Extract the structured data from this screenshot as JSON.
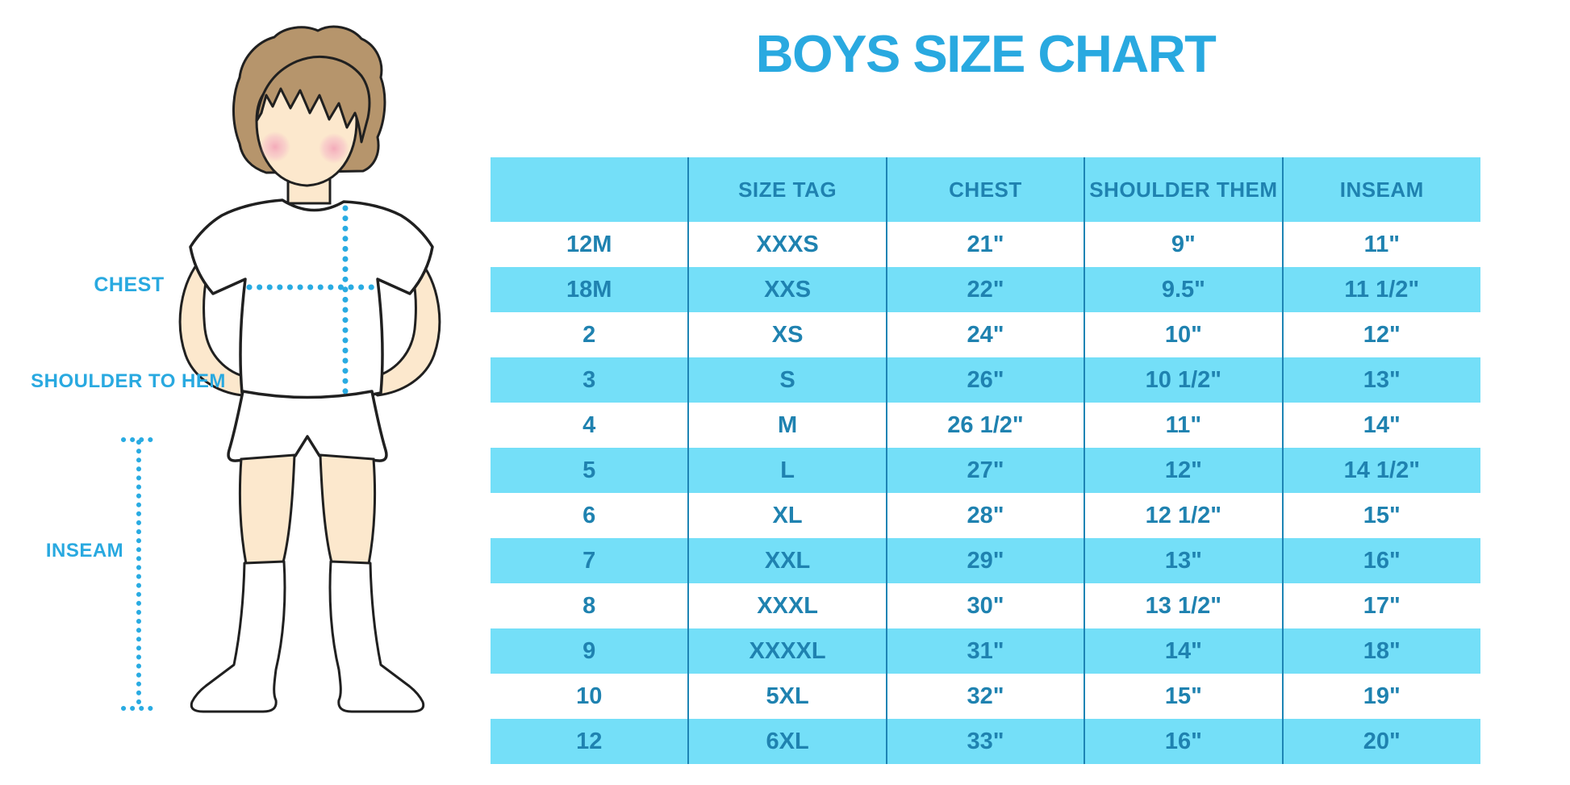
{
  "title": "BOYS SIZE CHART",
  "figure": {
    "chest_label": "CHEST",
    "shoulder_to_hem_label": "SHOULDER TO HEM",
    "inseam_label": "INSEAM"
  },
  "colors": {
    "accent_blue": "#29a9e0",
    "row_blue": "#74dff8",
    "table_text": "#1f82b0",
    "divider": "#1d84b4",
    "hair": "#b6956c",
    "skin": "#fce8cd"
  },
  "chart_data": {
    "type": "table",
    "title": "BOYS SIZE CHART",
    "columns": [
      "",
      "SIZE TAG",
      "CHEST",
      "SHOULDER THEM",
      "INSEAM"
    ],
    "rows": [
      [
        "12M",
        "XXXS",
        "21\"",
        "9\"",
        "11\""
      ],
      [
        "18M",
        "XXS",
        "22\"",
        "9.5\"",
        "11 1/2\""
      ],
      [
        "2",
        "XS",
        "24\"",
        "10\"",
        "12\""
      ],
      [
        "3",
        "S",
        "26\"",
        "10 1/2\"",
        "13\""
      ],
      [
        "4",
        "M",
        "26 1/2\"",
        "11\"",
        "14\""
      ],
      [
        "5",
        "L",
        "27\"",
        "12\"",
        "14 1/2\""
      ],
      [
        "6",
        "XL",
        "28\"",
        "12 1/2\"",
        "15\""
      ],
      [
        "7",
        "XXL",
        "29\"",
        "13\"",
        "16\""
      ],
      [
        "8",
        "XXXL",
        "30\"",
        "13 1/2\"",
        "17\""
      ],
      [
        "9",
        "XXXXL",
        "31\"",
        "14\"",
        "18\""
      ],
      [
        "10",
        "5XL",
        "32\"",
        "15\"",
        "19\""
      ],
      [
        "12",
        "6XL",
        "33\"",
        "16\"",
        "20\""
      ]
    ],
    "row_striping": "alternating white and light blue, header light blue",
    "legend_position": "none",
    "grid": "vertical column dividers only"
  }
}
